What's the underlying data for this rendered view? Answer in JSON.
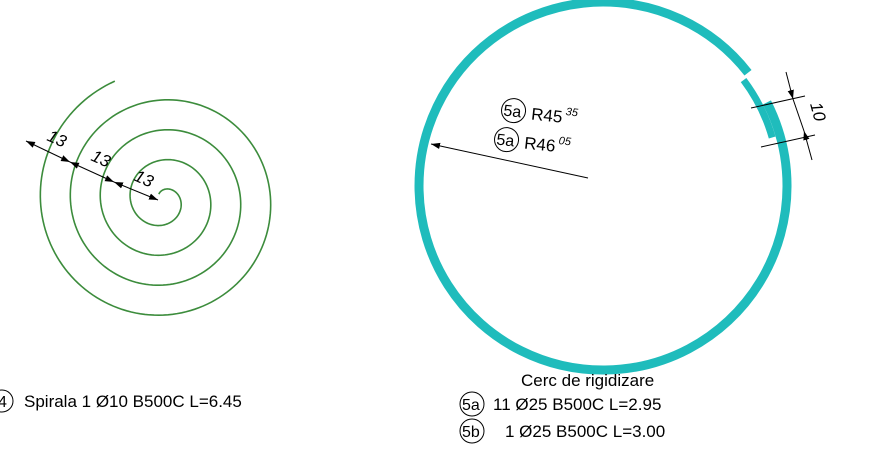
{
  "spiral": {
    "color": "#3c8c3c",
    "dimensions": [
      "13",
      "13",
      "13"
    ],
    "legend": {
      "mark": "4",
      "text": "Spirala 1 Ø10 B500C L=6.45"
    }
  },
  "ring": {
    "color": "#1fbcbc",
    "radius_labels": [
      {
        "mark": "5a",
        "base": "R45",
        "sup": "35"
      },
      {
        "mark": "5a",
        "base": "R46",
        "sup": "05"
      }
    ],
    "gap_dimension": "10",
    "title": "Cerc de rigidizare",
    "legend": [
      {
        "mark": "5a",
        "text": "11 Ø25 B500C L=2.95"
      },
      {
        "mark": "5b",
        "text": "1 Ø25 B500C L=3.00"
      }
    ]
  }
}
